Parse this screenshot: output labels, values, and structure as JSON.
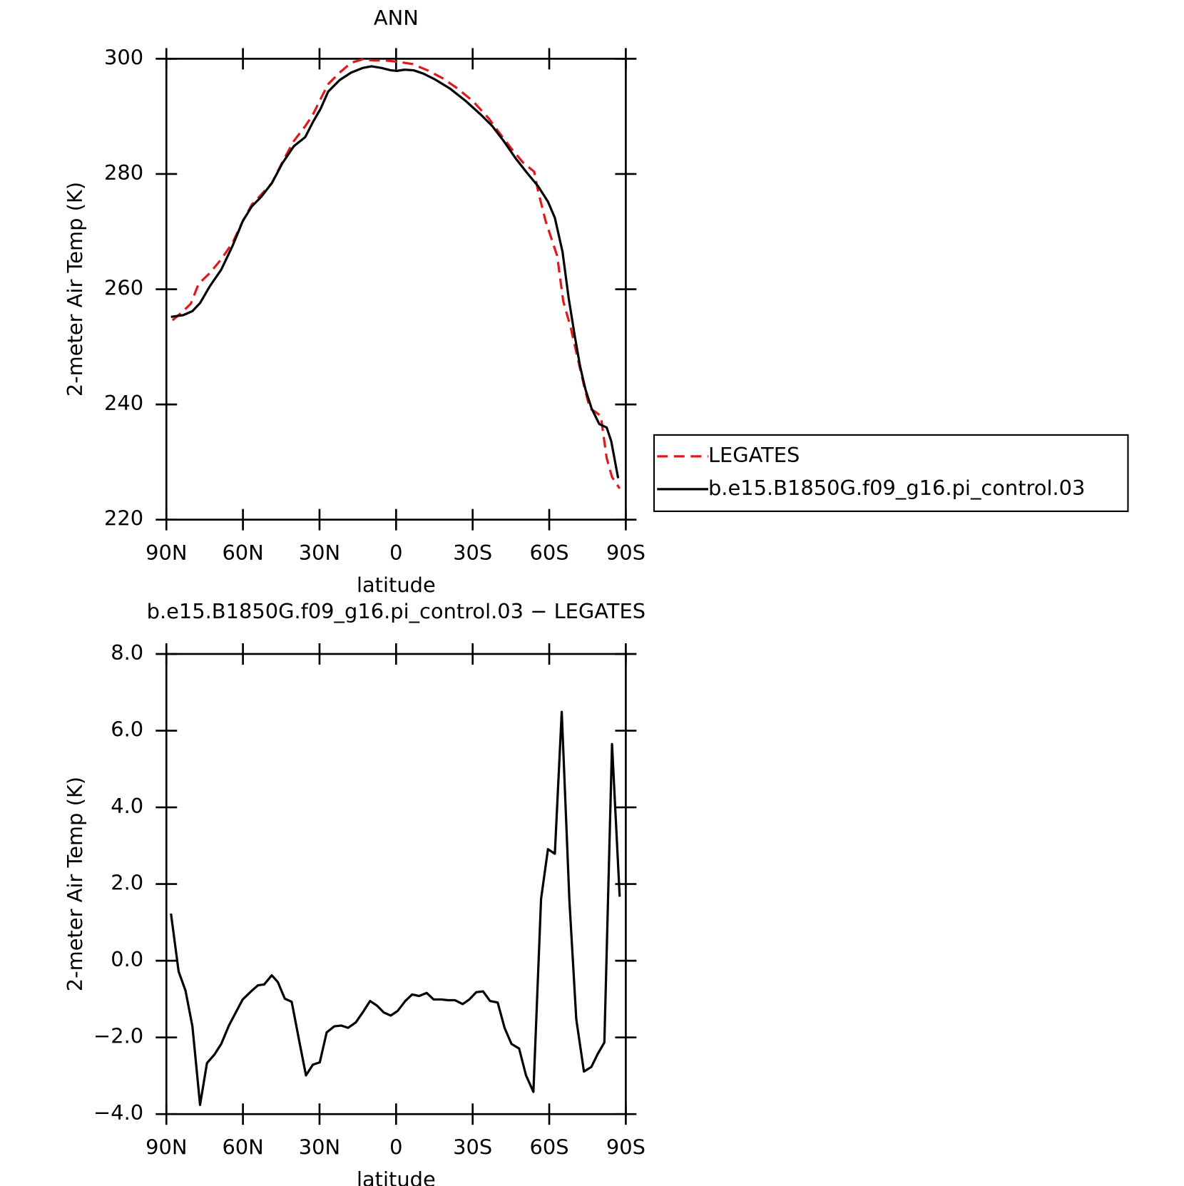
{
  "chart_data": [
    {
      "type": "line",
      "title": "ANN",
      "xlabel": "latitude",
      "ylabel": "2-meter Air Temp (K)",
      "xlim": [
        90,
        -90
      ],
      "ylim": [
        220,
        300
      ],
      "xticks": [
        {
          "value": 90,
          "label": "90N"
        },
        {
          "value": 60,
          "label": "60N"
        },
        {
          "value": 30,
          "label": "30N"
        },
        0,
        {
          "value": -30,
          "label": "30S"
        },
        {
          "value": -60,
          "label": "60S"
        },
        {
          "value": -90,
          "label": "90S"
        }
      ],
      "yticks": [
        220,
        240,
        260,
        280,
        300
      ],
      "legend": "outside-right",
      "series": [
        {
          "name": "LEGATES",
          "color": "#e0191b",
          "dashed": true,
          "x": [
            87.6,
            83.4,
            80.4,
            77.4,
            73.0,
            68.5,
            64.0,
            60.1,
            56.5,
            52.9,
            48.7,
            44.5,
            40.1,
            35.6,
            32.6,
            29.6,
            26.6,
            22.1,
            17.6,
            13.1,
            8.7,
            4.2,
            -0.3,
            -6.3,
            -12.3,
            -18.3,
            -24.2,
            -30.2,
            -36.2,
            -40.7,
            -45.2,
            -49.7,
            -54.1,
            -55.6,
            -58.6,
            -63.1,
            -65.5,
            -68.5,
            -71.2,
            -73.6,
            -75.9,
            -78.1,
            -80.2,
            -82.5,
            -84.6,
            -87.6
          ],
          "values": [
            254.6,
            256.2,
            257.5,
            260.9,
            262.8,
            265.2,
            268.1,
            271.8,
            274.7,
            276.4,
            278.4,
            282.1,
            285.7,
            288.3,
            290.3,
            293.0,
            295.6,
            297.6,
            299.3,
            299.9,
            299.7,
            299.7,
            299.5,
            299.1,
            298.0,
            296.6,
            294.8,
            292.6,
            289.7,
            287.0,
            284.4,
            282.0,
            280.4,
            277.1,
            271.8,
            265.8,
            257.9,
            253.2,
            247.9,
            243.3,
            239.3,
            238.7,
            238.0,
            230.7,
            227.4,
            225.4
          ]
        },
        {
          "name": "b.e15.B1850G.f09_g16.pi_control.03",
          "color": "#000000",
          "dashed": false,
          "x": [
            88.2,
            83.4,
            79.8,
            76.8,
            73.0,
            68.5,
            64.0,
            60.1,
            56.5,
            52.9,
            48.7,
            44.5,
            40.1,
            35.6,
            32.6,
            29.6,
            26.6,
            22.1,
            17.6,
            13.1,
            9.6,
            5.7,
            2.1,
            -0.3,
            -3.3,
            -6.9,
            -10.8,
            -15.3,
            -21.2,
            -27.2,
            -33.2,
            -37.7,
            -42.2,
            -46.7,
            -51.1,
            -55.6,
            -59.5,
            -62.2,
            -65.2,
            -67.6,
            -70.0,
            -72.1,
            -74.2,
            -76.6,
            -79.6,
            -82.5,
            -84.3,
            -87.0
          ],
          "values": [
            255.2,
            255.5,
            256.2,
            257.6,
            260.5,
            263.4,
            267.6,
            271.8,
            274.4,
            276.0,
            278.4,
            281.9,
            284.8,
            286.4,
            289.0,
            291.3,
            294.3,
            296.3,
            297.6,
            298.4,
            298.7,
            298.4,
            298.0,
            297.9,
            298.1,
            298.0,
            297.4,
            296.4,
            294.8,
            292.7,
            290.3,
            288.3,
            285.7,
            282.8,
            280.3,
            277.9,
            275.2,
            272.4,
            266.5,
            258.5,
            251.9,
            246.6,
            242.6,
            239.3,
            236.6,
            236.0,
            233.6,
            227.2
          ]
        }
      ]
    },
    {
      "type": "line",
      "title": "b.e15.B1850G.f09_g16.pi_control.03 − LEGATES",
      "xlabel": "latitude",
      "ylabel": "2-meter Air Temp (K)",
      "xlim": [
        90,
        -90
      ],
      "ylim": [
        -4,
        8
      ],
      "xticks": [
        {
          "value": 90,
          "label": "90N"
        },
        {
          "value": 60,
          "label": "60N"
        },
        {
          "value": 30,
          "label": "30N"
        },
        0,
        {
          "value": -30,
          "label": "30S"
        },
        {
          "value": -60,
          "label": "60S"
        },
        {
          "value": -90,
          "label": "90S"
        }
      ],
      "yticks": [
        {
          "value": -4,
          "label": "−4.0"
        },
        {
          "value": -2,
          "label": "−2.0"
        },
        {
          "value": 0,
          "label": "0.0"
        },
        {
          "value": 2,
          "label": "2.0"
        },
        {
          "value": 4,
          "label": "4.0"
        },
        {
          "value": 6,
          "label": "6.0"
        },
        {
          "value": 8,
          "label": "8.0"
        }
      ],
      "series": [
        {
          "color": "#000000",
          "dashed": false,
          "x": [
            88.2,
            85.2,
            82.5,
            79.8,
            76.8,
            74.1,
            71.2,
            68.5,
            65.5,
            62.5,
            60.1,
            56.5,
            54.1,
            51.7,
            48.7,
            46.3,
            43.6,
            40.9,
            37.9,
            35.3,
            32.6,
            29.9,
            27.2,
            24.2,
            21.5,
            18.8,
            15.8,
            13.1,
            10.2,
            7.5,
            4.8,
            2.1,
            -0.6,
            -3.6,
            -6.3,
            -9.0,
            -12.0,
            -14.7,
            -17.7,
            -20.4,
            -23.1,
            -26.1,
            -28.7,
            -31.4,
            -34.1,
            -36.8,
            -39.8,
            -42.5,
            -45.2,
            -48.2,
            -50.9,
            -53.8,
            -56.8,
            -59.5,
            -62.2,
            -64.9,
            -67.9,
            -70.6,
            -73.6,
            -76.5,
            -79.0,
            -81.6,
            -84.6,
            -87.6
          ],
          "values": [
            1.23,
            -0.28,
            -0.78,
            -1.71,
            -3.76,
            -2.67,
            -2.45,
            -2.17,
            -1.69,
            -1.31,
            -1.01,
            -0.78,
            -0.64,
            -0.62,
            -0.38,
            -0.56,
            -0.99,
            -1.07,
            -2.11,
            -2.99,
            -2.71,
            -2.65,
            -1.87,
            -1.71,
            -1.69,
            -1.75,
            -1.61,
            -1.35,
            -1.05,
            -1.17,
            -1.35,
            -1.43,
            -1.31,
            -1.05,
            -0.88,
            -0.92,
            -0.84,
            -1.01,
            -1.01,
            -1.03,
            -1.03,
            -1.13,
            -1.01,
            -0.82,
            -0.8,
            -1.05,
            -1.09,
            -1.75,
            -2.17,
            -2.29,
            -2.99,
            -3.42,
            1.61,
            2.91,
            2.79,
            6.49,
            1.57,
            -1.53,
            -2.89,
            -2.77,
            -2.43,
            -2.13,
            5.65,
            1.67
          ]
        }
      ]
    }
  ]
}
